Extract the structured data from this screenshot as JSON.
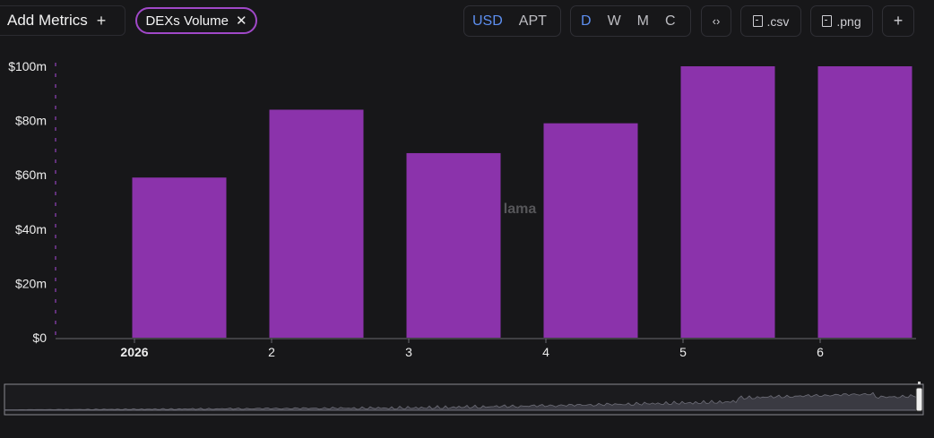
{
  "toolbar": {
    "add_metrics_label": "Add Metrics",
    "add_metrics_icon": "plus-icon",
    "chip_label": "DEXs Volume",
    "chip_close_icon": "close-icon",
    "currency_options": [
      "USD",
      "APT"
    ],
    "currency_selected": "USD",
    "period_options": [
      "D",
      "W",
      "M",
      "C"
    ],
    "period_selected": "D",
    "embed_icon": "code-icon",
    "csv_label": ".csv",
    "png_label": ".png",
    "add_icon": "plus-icon"
  },
  "watermark": "lama",
  "colors": {
    "bar": "#8b33ab",
    "accent": "#5d8ff0",
    "chip_border": "#a048c8"
  },
  "chart_data": {
    "type": "bar",
    "categories": [
      "2026",
      "2",
      "3",
      "4",
      "5",
      "6"
    ],
    "series": [
      {
        "values": [
          59,
          84,
          68,
          79,
          100,
          100
        ]
      }
    ],
    "ylim": [
      0,
      100
    ],
    "yticks": [
      "$0",
      "$20m",
      "$40m",
      "$60m",
      "$80m",
      "$100m"
    ],
    "ylabel": "",
    "xlabel": "",
    "grid": false,
    "legend": "none"
  }
}
